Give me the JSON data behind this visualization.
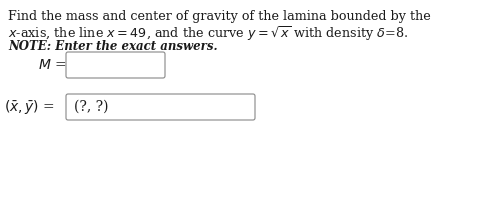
{
  "line1": "Find the mass and center of gravity of the lamina bounded by the",
  "line2_plain": "x-axis, the line ",
  "line3_math": "$x$-axis, the line $x = 49$, and the curve $y = \\sqrt{x}$ with density $\\delta$=8.",
  "note": "NOTE: Enter the exact answers.",
  "label_M": "$M$ =",
  "label_xy": "$(\\bar{x}, \\bar{y})$ =",
  "placeholder_xy": "(?, ?)",
  "bg_color": "#ffffff",
  "text_color": "#1a1a1a",
  "box_edge_color": "#888888",
  "box_fill": "#ffffff",
  "font_size_body": 9.2,
  "font_size_note": 8.5,
  "font_size_math": 10.0
}
